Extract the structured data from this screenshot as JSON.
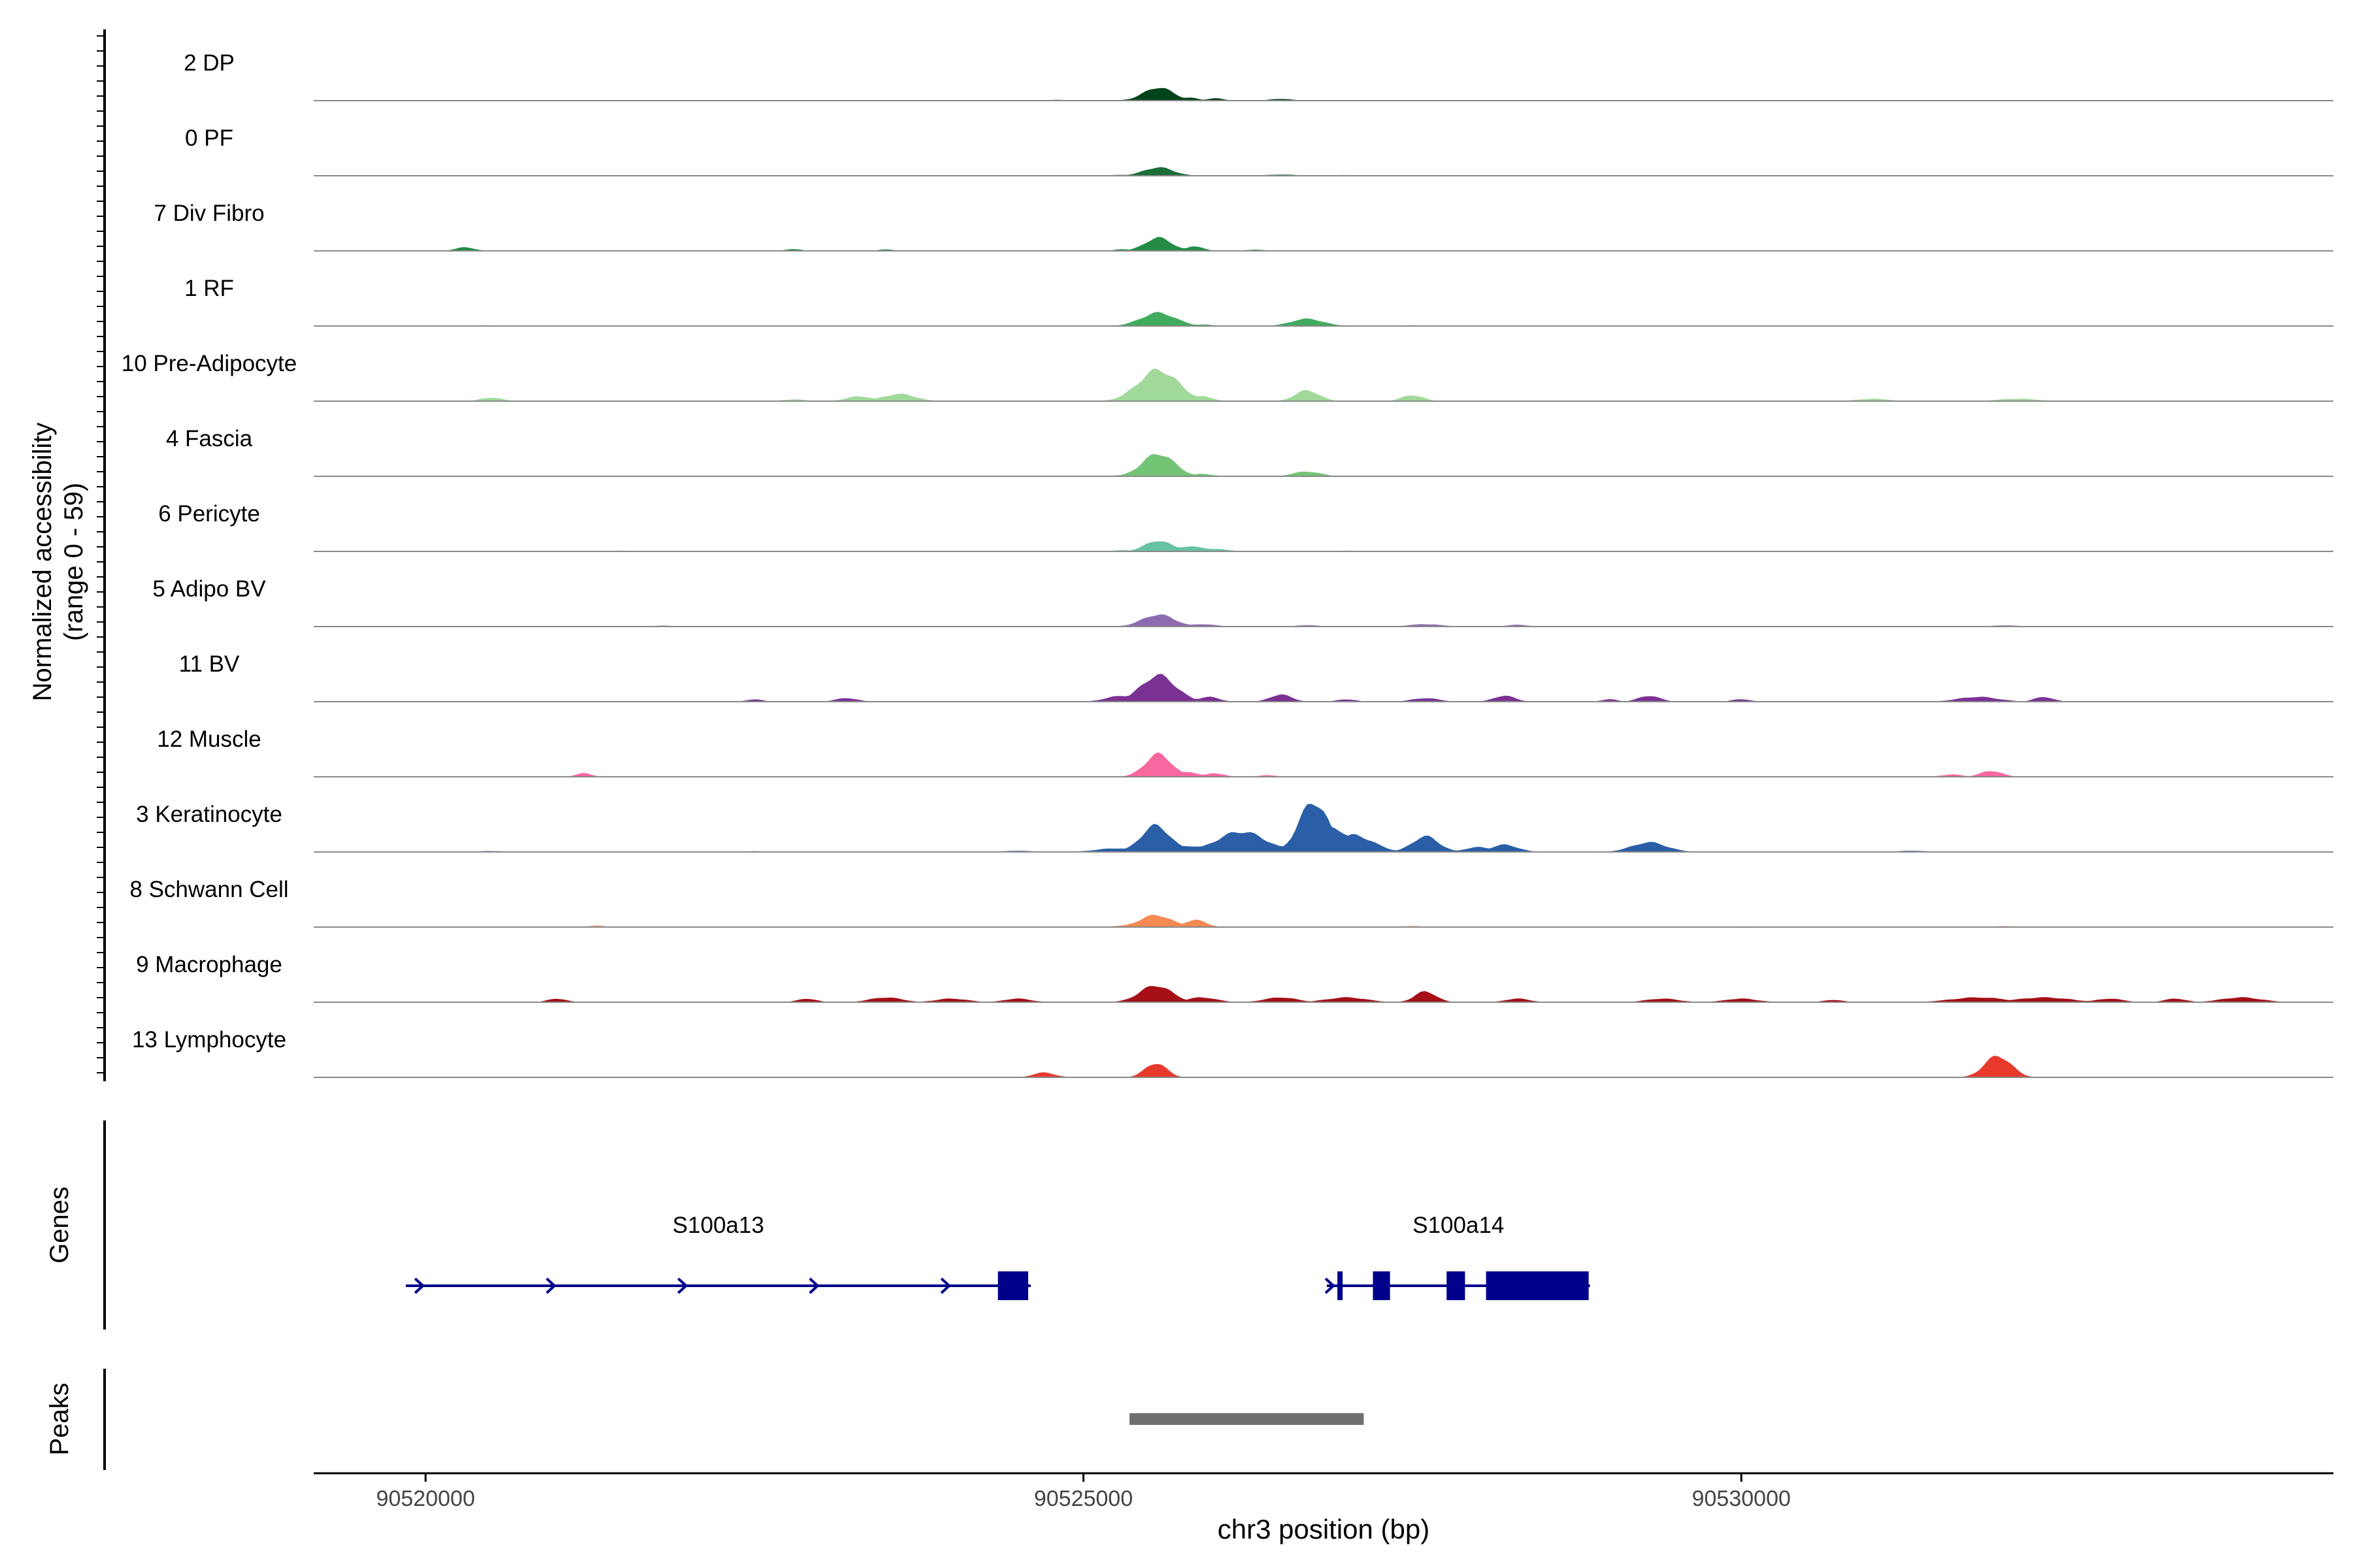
{
  "chart_data": {
    "type": "area",
    "ylabel_line1": "Normalized accessibility",
    "ylabel_line2": "(range 0 - 59)",
    "ylim": [
      0,
      59
    ],
    "xlabel": "chr3 position (bp)",
    "xlim": [
      90519150,
      90534500
    ],
    "xticks": [
      90520000,
      90525000,
      90530000
    ],
    "xtick_labels": [
      "90520000",
      "90525000",
      "90530000"
    ],
    "tracks": [
      {
        "name": "2 DP",
        "color": "#00441b",
        "peaks": [
          [
            90525570,
            11,
            110
          ],
          [
            90525800,
            2.5,
            70
          ],
          [
            90526000,
            2,
            60
          ],
          [
            90526500,
            1.5,
            80
          ],
          [
            90524800,
            0.8,
            50
          ],
          [
            90525400,
            1.5,
            80
          ]
        ]
      },
      {
        "name": "0 PF",
        "color": "#1b6e38",
        "peaks": [
          [
            90525570,
            7,
            110
          ],
          [
            90526500,
            1,
            120
          ],
          [
            90525300,
            0.8,
            80
          ],
          [
            90520400,
            0.6,
            100
          ],
          [
            90527000,
            0.6,
            100
          ],
          [
            90522000,
            0.5,
            80
          ]
        ]
      },
      {
        "name": "7 Div Fibro",
        "color": "#238b45",
        "peaks": [
          [
            90525570,
            11,
            100
          ],
          [
            90525850,
            4,
            60
          ],
          [
            90520300,
            3,
            70
          ],
          [
            90522800,
            1.5,
            60
          ],
          [
            90523500,
            1.2,
            60
          ],
          [
            90526300,
            1,
            80
          ],
          [
            90525300,
            1.5,
            60
          ]
        ]
      },
      {
        "name": "1 RF",
        "color": "#41ab5d",
        "peaks": [
          [
            90525570,
            11,
            130
          ],
          [
            90526700,
            6,
            120
          ],
          [
            90525900,
            1.2,
            80
          ],
          [
            90520500,
            0.6,
            100
          ],
          [
            90527500,
            0.6,
            100
          ]
        ]
      },
      {
        "name": "10 Pre-Adipocyte",
        "color": "#a1d99b",
        "peaks": [
          [
            90525570,
            26,
            150
          ],
          [
            90525900,
            4,
            80
          ],
          [
            90526700,
            9,
            90
          ],
          [
            90527500,
            5,
            80
          ],
          [
            90523600,
            6,
            120
          ],
          [
            90523300,
            4,
            100
          ],
          [
            90520500,
            3,
            80
          ],
          [
            90522800,
            1.5,
            80
          ],
          [
            90531000,
            2,
            120
          ],
          [
            90532100,
            2,
            150
          ]
        ]
      },
      {
        "name": "4 Fascia",
        "color": "#74c476",
        "peaks": [
          [
            90525570,
            19,
            120
          ],
          [
            90526700,
            4,
            100
          ],
          [
            90525900,
            2,
            80
          ],
          [
            90525300,
            1,
            80
          ],
          [
            90527500,
            0.6,
            100
          ]
        ]
      },
      {
        "name": "6 Pericyte",
        "color": "#66c2a4",
        "peaks": [
          [
            90525570,
            9,
            100
          ],
          [
            90525800,
            4,
            150
          ],
          [
            90526000,
            2,
            100
          ],
          [
            90525300,
            1,
            80
          ],
          [
            90521500,
            0.6,
            100
          ],
          [
            90527000,
            0.6,
            100
          ]
        ]
      },
      {
        "name": "5 Adipo BV",
        "color": "#8c6bb1",
        "peaks": [
          [
            90525570,
            10,
            120
          ],
          [
            90525900,
            2,
            100
          ],
          [
            90527600,
            2,
            120
          ],
          [
            90528300,
            1.5,
            80
          ],
          [
            90526700,
            1.2,
            80
          ],
          [
            90521800,
            0.8,
            80
          ],
          [
            90532000,
            1,
            100
          ]
        ]
      },
      {
        "name": "11 BV",
        "color": "#7b3294",
        "peaks": [
          [
            90525570,
            22,
            130
          ],
          [
            90525300,
            5,
            120
          ],
          [
            90525950,
            4,
            80
          ],
          [
            90526500,
            6,
            80
          ],
          [
            90528200,
            5,
            80
          ],
          [
            90529300,
            5,
            80
          ],
          [
            90531800,
            4,
            150
          ],
          [
            90532300,
            4,
            70
          ],
          [
            90527600,
            3,
            100
          ],
          [
            90523200,
            3,
            80
          ],
          [
            90522500,
            2,
            60
          ],
          [
            90527000,
            2,
            70
          ],
          [
            90529000,
            2,
            60
          ],
          [
            90530000,
            2,
            70
          ]
        ]
      },
      {
        "name": "12 Muscle",
        "color": "#f768a1",
        "peaks": [
          [
            90525570,
            19,
            100
          ],
          [
            90525800,
            4,
            80
          ],
          [
            90526000,
            3,
            70
          ],
          [
            90526400,
            1.5,
            60
          ],
          [
            90521200,
            3,
            60
          ],
          [
            90531900,
            5,
            80
          ],
          [
            90531600,
            2,
            80
          ]
        ]
      },
      {
        "name": "3 Keratinocyte",
        "color": "#2a5fa8",
        "peaks": [
          [
            90525550,
            22,
            110
          ],
          [
            90526200,
            17,
            180
          ],
          [
            90526750,
            42,
            110
          ],
          [
            90526900,
            20,
            120
          ],
          [
            90527050,
            14,
            150
          ],
          [
            90527600,
            13,
            100
          ],
          [
            90528000,
            4,
            100
          ],
          [
            90528200,
            6,
            100
          ],
          [
            90529300,
            8,
            130
          ],
          [
            90525250,
            3,
            150
          ],
          [
            90525800,
            5,
            150
          ],
          [
            90524500,
            1,
            100
          ],
          [
            90531300,
            1,
            100
          ],
          [
            90520500,
            0.8,
            100
          ],
          [
            90522500,
            0.6,
            100
          ]
        ]
      },
      {
        "name": "8 Schwann Cell",
        "color": "#f58a52",
        "peaks": [
          [
            90525550,
            10,
            120
          ],
          [
            90525850,
            6,
            80
          ],
          [
            90525300,
            1.2,
            80
          ],
          [
            90521300,
            1.2,
            60
          ],
          [
            90527500,
            1,
            60
          ],
          [
            90532000,
            0.8,
            80
          ],
          [
            90530000,
            0.6,
            80
          ]
        ]
      },
      {
        "name": "9 Macrophage",
        "color": "#a50f15",
        "peaks": [
          [
            90525550,
            14,
            120
          ],
          [
            90527600,
            9,
            80
          ],
          [
            90525900,
            4,
            110
          ],
          [
            90526500,
            4,
            120
          ],
          [
            90527000,
            4,
            150
          ],
          [
            90521000,
            3,
            70
          ],
          [
            90522900,
            3,
            70
          ],
          [
            90523500,
            4,
            120
          ],
          [
            90524000,
            3,
            120
          ],
          [
            90524500,
            3,
            100
          ],
          [
            90528300,
            3,
            90
          ],
          [
            90529400,
            3,
            120
          ],
          [
            90530000,
            3,
            120
          ],
          [
            90530700,
            2,
            70
          ],
          [
            90531800,
            4,
            200
          ],
          [
            90532300,
            4,
            200
          ],
          [
            90532800,
            3,
            100
          ],
          [
            90533300,
            3,
            80
          ],
          [
            90533800,
            4,
            150
          ]
        ]
      },
      {
        "name": "13 Lymphocyte",
        "color": "#e8392d",
        "peaks": [
          [
            90525550,
            12,
            80
          ],
          [
            90524700,
            4,
            80
          ],
          [
            90531950,
            18,
            100
          ]
        ]
      }
    ],
    "genes": [
      {
        "name": "S100a13",
        "strand": "+",
        "start": 90519850,
        "end": 90524600,
        "exons": [
          [
            90524350,
            90524580
          ]
        ],
        "strand_arrows": [
          90519950,
          90520950,
          90521950,
          90522950,
          90523950
        ]
      },
      {
        "name": "S100a14",
        "strand": "+",
        "start": 90526850,
        "end": 90528850,
        "exons": [
          [
            90526930,
            90526970
          ],
          [
            90527200,
            90527330
          ],
          [
            90527760,
            90527900
          ],
          [
            90528060,
            90528840
          ]
        ],
        "strand_arrows": [
          90526870
        ]
      }
    ],
    "peaks_track_label": "Peaks",
    "genes_track_label": "Genes",
    "peak_regions": [
      [
        90525350,
        90527130
      ]
    ],
    "peak_region_color": "#707070",
    "gene_color": "#00008b"
  }
}
